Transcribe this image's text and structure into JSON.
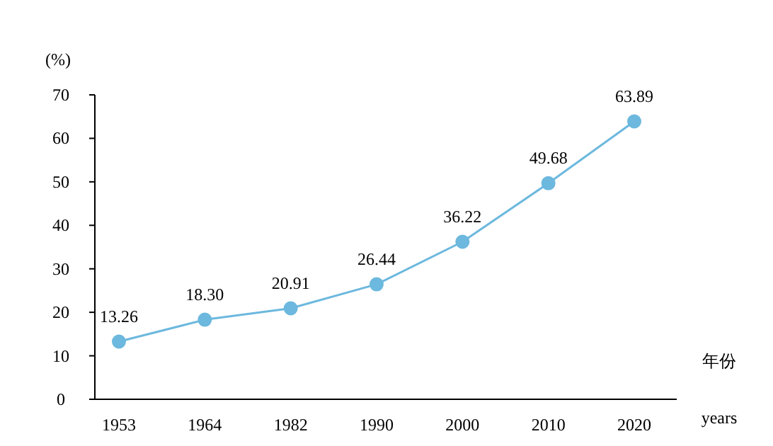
{
  "chart_data": {
    "type": "line",
    "ylabel": "(%)",
    "xlabel": "年份 years",
    "categories": [
      "1953",
      "1964",
      "1982",
      "1990",
      "2000",
      "2010",
      "2020"
    ],
    "values": [
      13.26,
      18.3,
      20.91,
      26.44,
      36.22,
      49.68,
      63.89
    ],
    "value_labels": [
      "13.26",
      "18.30",
      "20.91",
      "26.44",
      "36.22",
      "49.68",
      "63.89"
    ],
    "color": "#6cb8de",
    "marker": "circle",
    "grid": false,
    "ylim": [
      0,
      70
    ],
    "yticks": [
      0,
      10,
      20,
      30,
      40,
      50,
      60,
      70
    ]
  }
}
